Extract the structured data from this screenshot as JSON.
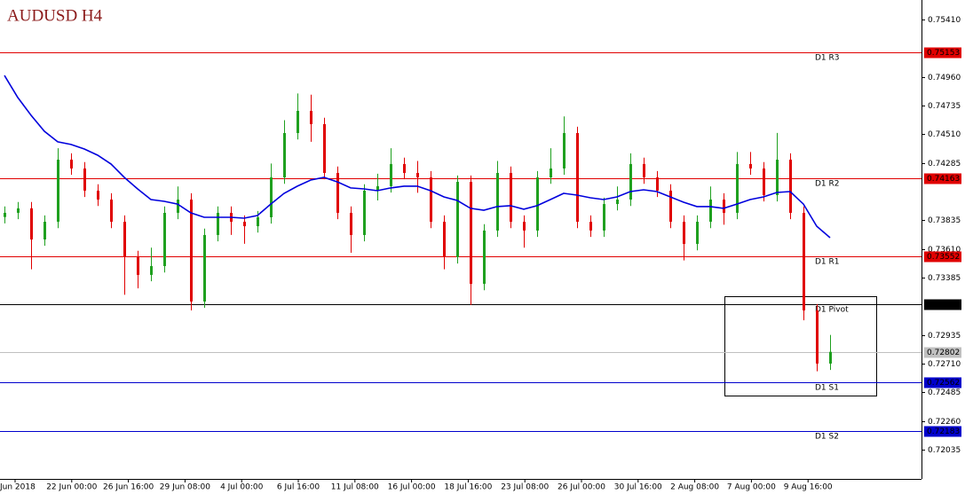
{
  "chart_data": {
    "type": "candlestick",
    "title": "AUDUSD H4",
    "ylim": [
      0.71805,
      0.75563
    ],
    "yticks": [
      {
        "value": 0.7541,
        "label": "0.75410"
      },
      {
        "value": 0.7496,
        "label": "0.74960"
      },
      {
        "value": 0.74735,
        "label": "0.74735"
      },
      {
        "value": 0.7451,
        "label": "0.74510"
      },
      {
        "value": 0.74285,
        "label": "0.74285"
      },
      {
        "value": 0.73835,
        "label": "0.73835"
      },
      {
        "value": 0.7361,
        "label": "0.73610"
      },
      {
        "value": 0.73385,
        "label": "0.73385"
      },
      {
        "value": 0.72935,
        "label": "0.72935"
      },
      {
        "value": 0.7271,
        "label": "0.72710"
      },
      {
        "value": 0.72485,
        "label": "0.72485"
      },
      {
        "value": 0.7226,
        "label": "0.72260"
      },
      {
        "value": 0.72035,
        "label": "0.72035"
      }
    ],
    "xlabels": [
      "Jun 2018",
      "22 Jun 00:00",
      "26 Jun 16:00",
      "29 Jun 08:00",
      "4 Jul 00:00",
      "6 Jul 16:00",
      "11 Jul 08:00",
      "16 Jul 00:00",
      "18 Jul 16:00",
      "23 Jul 08:00",
      "26 Jul 00:00",
      "30 Jul 16:00",
      "2 Aug 08:00",
      "7 Aug 00:00",
      "9 Aug 16:00"
    ],
    "bull_color": "#1fa01f",
    "bear_color": "#e00000",
    "ohlc": [
      [
        0.7386,
        0.73943,
        0.7381,
        0.73893
      ],
      [
        0.73893,
        0.73978,
        0.73843,
        0.73928
      ],
      [
        0.73928,
        0.73978,
        0.7345,
        0.73684
      ],
      [
        0.73684,
        0.73873,
        0.73634,
        0.73823
      ],
      [
        0.73823,
        0.744,
        0.73773,
        0.7431
      ],
      [
        0.7431,
        0.7436,
        0.74191,
        0.74241
      ],
      [
        0.74241,
        0.74291,
        0.74017,
        0.74067
      ],
      [
        0.74067,
        0.74117,
        0.73947,
        0.73997
      ],
      [
        0.73997,
        0.74047,
        0.73773,
        0.73823
      ],
      [
        0.73823,
        0.73873,
        0.7325,
        0.73545
      ],
      [
        0.73545,
        0.73595,
        0.733,
        0.73406
      ],
      [
        0.73406,
        0.7362,
        0.73356,
        0.73475
      ],
      [
        0.73475,
        0.73943,
        0.73425,
        0.73893
      ],
      [
        0.73893,
        0.741,
        0.73843,
        0.73997
      ],
      [
        0.73997,
        0.74047,
        0.73127,
        0.73197
      ],
      [
        0.73197,
        0.73769,
        0.73147,
        0.73719
      ],
      [
        0.73719,
        0.73943,
        0.73669,
        0.73893
      ],
      [
        0.73893,
        0.73943,
        0.7372,
        0.73823
      ],
      [
        0.73823,
        0.73873,
        0.7365,
        0.73788
      ],
      [
        0.73788,
        0.73908,
        0.73738,
        0.73858
      ],
      [
        0.73858,
        0.7428,
        0.73808,
        0.74171
      ],
      [
        0.74171,
        0.7462,
        0.74121,
        0.74519
      ],
      [
        0.74519,
        0.7483,
        0.74469,
        0.74693
      ],
      [
        0.74693,
        0.7482,
        0.7445,
        0.74589
      ],
      [
        0.74589,
        0.74639,
        0.74156,
        0.74206
      ],
      [
        0.74206,
        0.74256,
        0.73843,
        0.73893
      ],
      [
        0.73893,
        0.73943,
        0.7358,
        0.73719
      ],
      [
        0.73719,
        0.74117,
        0.73669,
        0.74067
      ],
      [
        0.74067,
        0.742,
        0.7399,
        0.74102
      ],
      [
        0.74102,
        0.744,
        0.74052,
        0.74276
      ],
      [
        0.74276,
        0.74326,
        0.74156,
        0.74206
      ],
      [
        0.74206,
        0.743,
        0.7405,
        0.74171
      ],
      [
        0.74171,
        0.74221,
        0.73773,
        0.73823
      ],
      [
        0.73823,
        0.73873,
        0.7345,
        0.73545
      ],
      [
        0.73545,
        0.74186,
        0.73495,
        0.74136
      ],
      [
        0.74136,
        0.74186,
        0.7317,
        0.73336
      ],
      [
        0.73336,
        0.73804,
        0.73286,
        0.73754
      ],
      [
        0.73754,
        0.743,
        0.73704,
        0.74206
      ],
      [
        0.74206,
        0.74256,
        0.73773,
        0.73823
      ],
      [
        0.73823,
        0.73873,
        0.7362,
        0.73754
      ],
      [
        0.73754,
        0.74221,
        0.73704,
        0.74171
      ],
      [
        0.74171,
        0.744,
        0.74121,
        0.74241
      ],
      [
        0.74241,
        0.7465,
        0.74191,
        0.74519
      ],
      [
        0.74519,
        0.74569,
        0.73773,
        0.73823
      ],
      [
        0.73823,
        0.73873,
        0.73704,
        0.73754
      ],
      [
        0.73754,
        0.74012,
        0.73704,
        0.73962
      ],
      [
        0.73962,
        0.741,
        0.73912,
        0.73997
      ],
      [
        0.73997,
        0.7436,
        0.73947,
        0.74276
      ],
      [
        0.74276,
        0.74326,
        0.74121,
        0.74171
      ],
      [
        0.74171,
        0.74221,
        0.74017,
        0.74067
      ],
      [
        0.74067,
        0.74117,
        0.73773,
        0.73823
      ],
      [
        0.73823,
        0.73873,
        0.7352,
        0.73649
      ],
      [
        0.73649,
        0.73873,
        0.73599,
        0.73823
      ],
      [
        0.73823,
        0.741,
        0.73773,
        0.73997
      ],
      [
        0.73997,
        0.74047,
        0.738,
        0.73893
      ],
      [
        0.73893,
        0.7437,
        0.73843,
        0.74276
      ],
      [
        0.74276,
        0.7437,
        0.74191,
        0.74241
      ],
      [
        0.74241,
        0.74291,
        0.73982,
        0.74032
      ],
      [
        0.74032,
        0.7452,
        0.73982,
        0.7431
      ],
      [
        0.7431,
        0.7436,
        0.73843,
        0.73893
      ],
      [
        0.73893,
        0.73943,
        0.7305,
        0.73127
      ],
      [
        0.73127,
        0.73177,
        0.7265,
        0.7271
      ],
      [
        0.7271,
        0.72935,
        0.7266,
        0.72802
      ]
    ],
    "ma": {
      "color": "#0000dd",
      "values": [
        0.74971,
        0.74798,
        0.74658,
        0.74533,
        0.7445,
        0.74429,
        0.74394,
        0.74345,
        0.74276,
        0.74171,
        0.74081,
        0.73997,
        0.73983,
        0.73962,
        0.73893,
        0.73858,
        0.73858,
        0.73858,
        0.73851,
        0.73872,
        0.73962,
        0.74046,
        0.74102,
        0.7415,
        0.74171,
        0.74136,
        0.74088,
        0.74081,
        0.74067,
        0.74088,
        0.74102,
        0.74102,
        0.74067,
        0.74018,
        0.7399,
        0.73928,
        0.73914,
        0.73942,
        0.73949,
        0.73921,
        0.73949,
        0.73997,
        0.74046,
        0.74032,
        0.74011,
        0.73997,
        0.74018,
        0.7406,
        0.74074,
        0.7406,
        0.74018,
        0.73976,
        0.73942,
        0.73942,
        0.73928,
        0.73962,
        0.73997,
        0.74018,
        0.74053,
        0.7406,
        0.73962,
        0.73788,
        0.73698
      ]
    },
    "levels": [
      {
        "name": "D1 R3",
        "value": 0.75153,
        "color": "#e00000"
      },
      {
        "name": "D1 R2",
        "value": 0.74163,
        "color": "#e00000"
      },
      {
        "name": "D1 R1",
        "value": 0.73552,
        "color": "#e00000"
      },
      {
        "name": "D1 Pivot",
        "value": 0.73173,
        "color": "#000000"
      },
      {
        "name": "D1 S1",
        "value": 0.72562,
        "color": "#0000cc"
      },
      {
        "name": "D1 S2",
        "value": 0.72183,
        "color": "#0000cc"
      }
    ],
    "last_price": {
      "value": 0.72802,
      "color": "#c0c0c0"
    }
  }
}
